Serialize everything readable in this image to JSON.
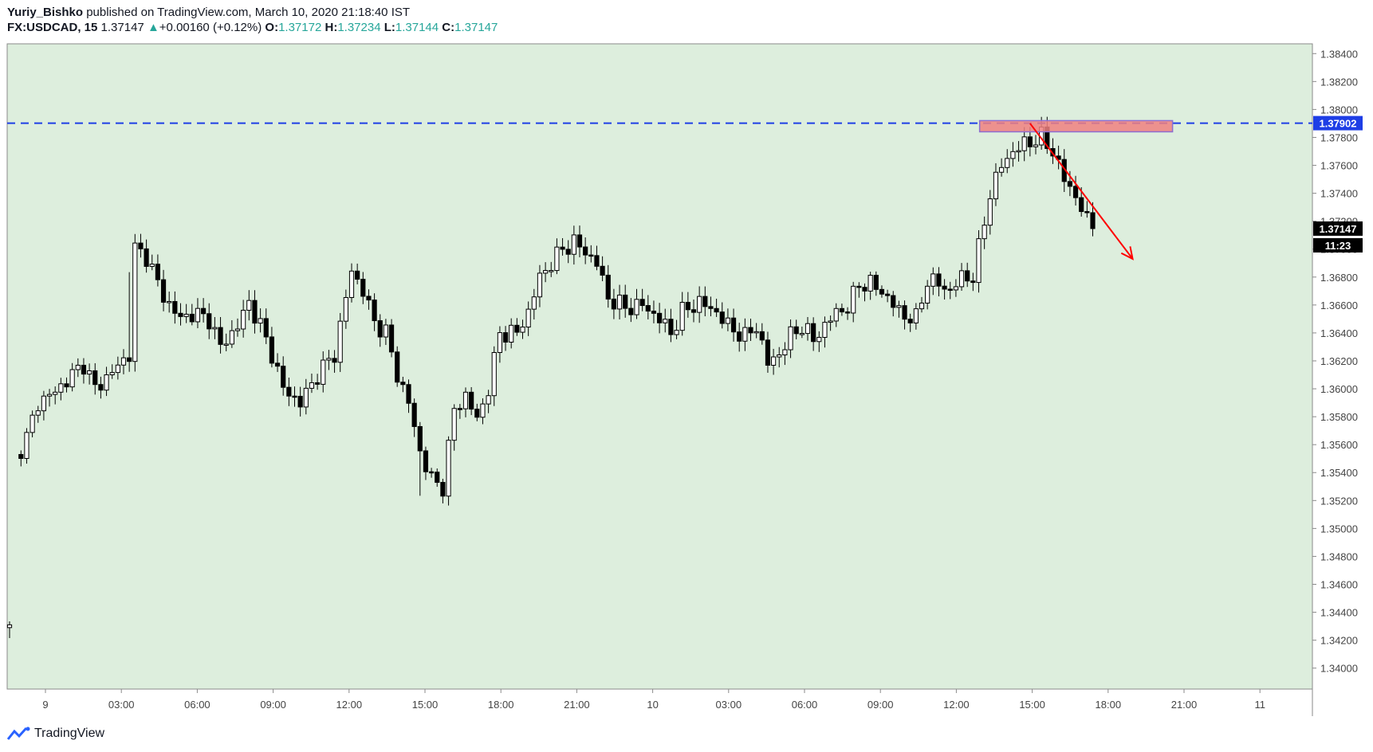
{
  "header": {
    "author": "Yuriy_Bishko",
    "published_text": "published on TradingView.com, March 10, 2020 21:18:40 IST",
    "symbol": "FX:USDCAD, 15",
    "last": "1.37147",
    "arrow": "▲",
    "change": "+0.00160 (+0.12%)",
    "o_label": "O:",
    "o_value": "1.37172",
    "h_label": "H:",
    "h_value": "1.37234",
    "l_label": "L:",
    "l_value": "1.37144",
    "c_label": "C:",
    "c_value": "1.37147"
  },
  "footer": {
    "brand": "TradingView"
  },
  "colors": {
    "plot_bg": "#ddeedd",
    "candle_up": "#ffffff",
    "candle_down": "#000000",
    "resistance_line": "#1e3ee6",
    "resistance_label_bg": "#1e3ee6",
    "zone_fill": "#f08080",
    "zone_border": "#8c6ed1",
    "arrow": "#ff0000",
    "price_label_bg": "#000000"
  },
  "chart_data": {
    "type": "candlestick",
    "symbol": "FX:USDCAD",
    "interval": "15",
    "ylim": [
      1.3385,
      1.3847
    ],
    "y_ticks": [
      "1.38400",
      "1.38200",
      "1.38000",
      "1.37800",
      "1.37600",
      "1.37400",
      "1.37200",
      "1.37000",
      "1.36800",
      "1.36600",
      "1.36400",
      "1.36200",
      "1.36000",
      "1.35800",
      "1.35600",
      "1.35400",
      "1.35200",
      "1.35000",
      "1.34800",
      "1.34600",
      "1.34400",
      "1.34200",
      "1.34000"
    ],
    "x_ticks": [
      "9",
      "03:00",
      "06:00",
      "09:00",
      "12:00",
      "15:00",
      "18:00",
      "21:00",
      "10",
      "03:00",
      "06:00",
      "09:00",
      "12:00",
      "15:00",
      "18:00",
      "21:00",
      "11"
    ],
    "grid": false,
    "resistance_level": 1.37902,
    "resistance_label": "1.37902",
    "current_price": 1.37147,
    "current_price_label": "1.37147",
    "countdown_label": "11:23",
    "supply_zone": {
      "top": 1.3792,
      "bottom": 1.3784
    },
    "forecast_arrow": {
      "from_price": 1.379,
      "to_price": 1.3693,
      "direction": "down"
    },
    "anchors": [
      [
        0,
        1.3428
      ],
      [
        1,
        1.355
      ],
      [
        3,
        1.3565
      ],
      [
        5,
        1.359
      ],
      [
        8,
        1.3598
      ],
      [
        10,
        1.3606
      ],
      [
        13,
        1.3618
      ],
      [
        15,
        1.36
      ],
      [
        18,
        1.3612
      ],
      [
        21,
        1.3625
      ],
      [
        22,
        1.37
      ],
      [
        24,
        1.3695
      ],
      [
        27,
        1.3666
      ],
      [
        30,
        1.365
      ],
      [
        32,
        1.3654
      ],
      [
        35,
        1.365
      ],
      [
        37,
        1.363
      ],
      [
        40,
        1.3645
      ],
      [
        42,
        1.3662
      ],
      [
        44,
        1.3645
      ],
      [
        46,
        1.3625
      ],
      [
        48,
        1.36
      ],
      [
        51,
        1.359
      ],
      [
        54,
        1.361
      ],
      [
        57,
        1.3625
      ],
      [
        60,
        1.3685
      ],
      [
        62,
        1.367
      ],
      [
        64,
        1.3648
      ],
      [
        66,
        1.364
      ],
      [
        68,
        1.361
      ],
      [
        70,
        1.359
      ],
      [
        72,
        1.3555
      ],
      [
        74,
        1.3535
      ],
      [
        76,
        1.353
      ],
      [
        78,
        1.3585
      ],
      [
        80,
        1.3595
      ],
      [
        82,
        1.3578
      ],
      [
        84,
        1.36
      ],
      [
        86,
        1.364
      ],
      [
        89,
        1.364
      ],
      [
        91,
        1.3655
      ],
      [
        93,
        1.368
      ],
      [
        95,
        1.369
      ],
      [
        97,
        1.37
      ],
      [
        99,
        1.3705
      ],
      [
        101,
        1.3698
      ],
      [
        103,
        1.369
      ],
      [
        105,
        1.3665
      ],
      [
        108,
        1.3658
      ],
      [
        111,
        1.366
      ],
      [
        114,
        1.365
      ],
      [
        116,
        1.364
      ],
      [
        118,
        1.3655
      ],
      [
        121,
        1.3662
      ],
      [
        124,
        1.3655
      ],
      [
        126,
        1.3645
      ],
      [
        129,
        1.3637
      ],
      [
        131,
        1.3645
      ],
      [
        133,
        1.3618
      ],
      [
        135,
        1.3625
      ],
      [
        137,
        1.3638
      ],
      [
        139,
        1.3645
      ],
      [
        141,
        1.3635
      ],
      [
        143,
        1.3645
      ],
      [
        145,
        1.3655
      ],
      [
        147,
        1.3658
      ],
      [
        149,
        1.3675
      ],
      [
        151,
        1.3675
      ],
      [
        153,
        1.367
      ],
      [
        155,
        1.366
      ],
      [
        157,
        1.3652
      ],
      [
        159,
        1.365
      ],
      [
        161,
        1.3678
      ],
      [
        163,
        1.3675
      ],
      [
        165,
        1.367
      ],
      [
        167,
        1.368
      ],
      [
        169,
        1.368
      ],
      [
        170,
        1.37
      ],
      [
        172,
        1.374
      ],
      [
        174,
        1.376
      ],
      [
        176,
        1.377
      ],
      [
        178,
        1.3775
      ],
      [
        181,
        1.378
      ],
      [
        183,
        1.377
      ],
      [
        185,
        1.375
      ],
      [
        187,
        1.3738
      ],
      [
        189,
        1.372
      ],
      [
        190,
        1.3716
      ]
    ],
    "total_bars": 191
  }
}
